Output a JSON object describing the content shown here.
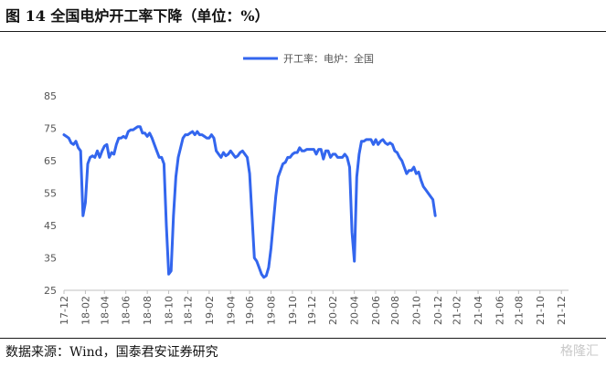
{
  "header": {
    "title": "图 14 全国电炉开工率下降（单位：%）"
  },
  "footer": {
    "source": "数据来源：Wind，国泰君安证券研究",
    "watermark": "格隆汇"
  },
  "colors": {
    "series": "#3366ee",
    "axis": "#bfbfbf"
  },
  "chart_data": {
    "type": "line",
    "title": "",
    "xlabel": "",
    "ylabel": "",
    "ylim": [
      25,
      85
    ],
    "yticks": [
      25,
      35,
      45,
      55,
      65,
      75,
      85
    ],
    "legend": "top",
    "grid": false,
    "xlim": [
      0,
      212
    ],
    "xticks": [
      {
        "i": 0,
        "label": "17-12"
      },
      {
        "i": 9,
        "label": "18-02"
      },
      {
        "i": 17,
        "label": "18-04"
      },
      {
        "i": 26,
        "label": "18-06"
      },
      {
        "i": 35,
        "label": "18-08"
      },
      {
        "i": 44,
        "label": "18-10"
      },
      {
        "i": 52,
        "label": "18-12"
      },
      {
        "i": 61,
        "label": "19-02"
      },
      {
        "i": 70,
        "label": "19-04"
      },
      {
        "i": 78,
        "label": "19-06"
      },
      {
        "i": 87,
        "label": "19-08"
      },
      {
        "i": 96,
        "label": "19-10"
      },
      {
        "i": 104,
        "label": "19-12"
      },
      {
        "i": 113,
        "label": "20-02"
      },
      {
        "i": 122,
        "label": "20-04"
      },
      {
        "i": 131,
        "label": "20-06"
      },
      {
        "i": 139,
        "label": "20-08"
      },
      {
        "i": 148,
        "label": "20-10"
      },
      {
        "i": 157,
        "label": "20-12"
      },
      {
        "i": 165,
        "label": "21-02"
      },
      {
        "i": 174,
        "label": "21-04"
      },
      {
        "i": 183,
        "label": "21-06"
      },
      {
        "i": 191,
        "label": "21-08"
      },
      {
        "i": 200,
        "label": "21-10"
      },
      {
        "i": 209,
        "label": "21-12"
      }
    ],
    "series": [
      {
        "name": "开工率：电炉：全国",
        "points": [
          [
            0,
            73
          ],
          [
            1,
            72.5
          ],
          [
            2,
            72
          ],
          [
            3,
            70.5
          ],
          [
            4,
            70
          ],
          [
            5,
            71
          ],
          [
            6,
            69
          ],
          [
            7,
            68
          ],
          [
            8,
            48
          ],
          [
            9,
            52
          ],
          [
            10,
            64
          ],
          [
            11,
            66
          ],
          [
            12,
            66.5
          ],
          [
            13,
            66
          ],
          [
            14,
            68
          ],
          [
            15,
            66
          ],
          [
            16,
            68
          ],
          [
            17,
            69.5
          ],
          [
            18,
            70
          ],
          [
            19,
            66
          ],
          [
            20,
            67.5
          ],
          [
            21,
            67
          ],
          [
            22,
            70
          ],
          [
            23,
            72
          ],
          [
            24,
            72
          ],
          [
            25,
            72.5
          ],
          [
            26,
            72
          ],
          [
            27,
            74
          ],
          [
            28,
            74.5
          ],
          [
            29,
            74.5
          ],
          [
            30,
            75
          ],
          [
            31,
            75.5
          ],
          [
            32,
            75.5
          ],
          [
            33,
            73.5
          ],
          [
            34,
            73.5
          ],
          [
            35,
            72.5
          ],
          [
            36,
            73.5
          ],
          [
            37,
            72
          ],
          [
            38,
            70
          ],
          [
            39,
            68
          ],
          [
            40,
            66
          ],
          [
            41,
            66
          ],
          [
            42,
            64
          ],
          [
            43,
            45
          ],
          [
            44,
            30
          ],
          [
            45,
            31
          ],
          [
            46,
            48
          ],
          [
            47,
            60
          ],
          [
            48,
            66
          ],
          [
            49,
            69
          ],
          [
            50,
            72
          ],
          [
            51,
            73
          ],
          [
            52,
            73
          ],
          [
            53,
            73.5
          ],
          [
            54,
            74
          ],
          [
            55,
            73
          ],
          [
            56,
            74
          ],
          [
            57,
            73
          ],
          [
            58,
            73
          ],
          [
            59,
            72.5
          ],
          [
            60,
            72
          ],
          [
            61,
            72
          ],
          [
            62,
            73
          ],
          [
            63,
            72
          ],
          [
            64,
            68
          ],
          [
            65,
            67
          ],
          [
            66,
            66
          ],
          [
            67,
            67.5
          ],
          [
            68,
            66.5
          ],
          [
            69,
            67
          ],
          [
            70,
            68
          ],
          [
            71,
            67
          ],
          [
            72,
            66
          ],
          [
            73,
            66.5
          ],
          [
            74,
            67.5
          ],
          [
            75,
            68
          ],
          [
            76,
            67
          ],
          [
            77,
            66
          ],
          [
            78,
            61
          ],
          [
            79,
            48
          ],
          [
            80,
            35
          ],
          [
            81,
            34
          ],
          [
            82,
            32
          ],
          [
            83,
            30
          ],
          [
            84,
            29
          ],
          [
            85,
            29.5
          ],
          [
            86,
            32
          ],
          [
            87,
            38
          ],
          [
            88,
            46
          ],
          [
            89,
            54
          ],
          [
            90,
            60
          ],
          [
            91,
            62
          ],
          [
            92,
            64
          ],
          [
            93,
            64.5
          ],
          [
            94,
            66
          ],
          [
            95,
            66
          ],
          [
            96,
            67
          ],
          [
            97,
            67.5
          ],
          [
            98,
            67.5
          ],
          [
            99,
            69
          ],
          [
            100,
            68
          ],
          [
            101,
            68
          ],
          [
            102,
            68.5
          ],
          [
            103,
            68.5
          ],
          [
            104,
            68.5
          ],
          [
            105,
            68.5
          ],
          [
            106,
            67
          ],
          [
            107,
            68.5
          ],
          [
            108,
            68.5
          ],
          [
            109,
            65.5
          ],
          [
            110,
            68
          ],
          [
            111,
            68
          ],
          [
            112,
            66
          ],
          [
            113,
            67
          ],
          [
            114,
            67
          ],
          [
            115,
            66
          ],
          [
            116,
            66
          ],
          [
            117,
            66
          ],
          [
            118,
            67
          ],
          [
            119,
            66
          ],
          [
            120,
            63
          ],
          [
            121,
            43
          ],
          [
            122,
            34
          ],
          [
            123,
            60
          ],
          [
            124,
            67
          ],
          [
            125,
            71
          ],
          [
            126,
            71
          ],
          [
            127,
            71.5
          ],
          [
            128,
            71.5
          ],
          [
            129,
            71.5
          ],
          [
            130,
            70
          ],
          [
            131,
            71.5
          ],
          [
            132,
            70
          ],
          [
            133,
            71
          ],
          [
            134,
            71.5
          ],
          [
            135,
            70.5
          ],
          [
            136,
            70
          ],
          [
            137,
            70.5
          ],
          [
            138,
            70
          ],
          [
            139,
            68
          ],
          [
            140,
            67.5
          ],
          [
            141,
            66
          ],
          [
            142,
            65
          ],
          [
            143,
            63
          ],
          [
            144,
            61
          ],
          [
            145,
            62
          ],
          [
            146,
            62
          ],
          [
            147,
            63
          ],
          [
            148,
            61
          ],
          [
            149,
            61.5
          ],
          [
            150,
            59
          ],
          [
            151,
            57
          ],
          [
            152,
            56
          ],
          [
            153,
            55
          ],
          [
            154,
            54
          ],
          [
            155,
            53
          ],
          [
            156,
            48
          ]
        ]
      }
    ]
  }
}
